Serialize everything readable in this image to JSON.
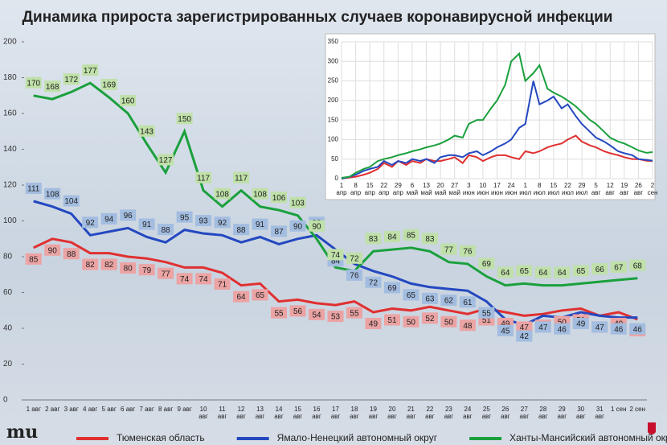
{
  "chart_data": [
    {
      "type": "line",
      "title": "Динамика прироста зарегистрированных случаев коронавирусной инфекции",
      "categories": [
        "1 авг",
        "2 авг",
        "3 авг",
        "4 авг",
        "5 авг",
        "6 авг",
        "7 авг",
        "8 авг",
        "9 авг",
        "10 авг",
        "11 авг",
        "12 авг",
        "13 авг",
        "14 авг",
        "15 авг",
        "16 авг",
        "17 авг",
        "18 авг",
        "19 авг",
        "20 авг",
        "21 авг",
        "22 авг",
        "23 авг",
        "24 авг",
        "25 авг",
        "26 авг",
        "27 авг",
        "28 авг",
        "29 авг",
        "30 авг",
        "31 авг",
        "1 сен",
        "2 сен"
      ],
      "series": [
        {
          "name": "Тюменская область",
          "color": "#e03030",
          "label_color": "#eba3a3",
          "values": [
            85,
            90,
            88,
            82,
            82,
            80,
            79,
            77,
            74,
            74,
            71,
            64,
            65,
            55,
            56,
            54,
            53,
            55,
            49,
            51,
            50,
            52,
            50,
            48,
            51,
            49,
            47,
            48,
            50,
            51,
            47,
            49,
            45
          ]
        },
        {
          "name": "Ямало-Ненецкий автономный округ",
          "color": "#2448c0",
          "label_color": "#a3bde0",
          "values": [
            111,
            108,
            104,
            92,
            94,
            96,
            91,
            88,
            95,
            93,
            92,
            88,
            91,
            87,
            90,
            92,
            84,
            76,
            72,
            69,
            65,
            63,
            62,
            61,
            55,
            45,
            42,
            47,
            46,
            49,
            47,
            46,
            46
          ]
        },
        {
          "name": "Ханты-Мансийский автономный округ — Югра",
          "color": "#1aa03c",
          "label_color": "#bfe0a8",
          "values": [
            170,
            168,
            172,
            177,
            169,
            160,
            143,
            127,
            150,
            117,
            108,
            117,
            108,
            106,
            103,
            90,
            74,
            72,
            83,
            84,
            85,
            83,
            77,
            76,
            69,
            64,
            65,
            64,
            64,
            65,
            66,
            67,
            68
          ]
        }
      ],
      "ylim": [
        0,
        200
      ],
      "yticks": [
        0,
        20,
        40,
        60,
        80,
        100,
        120,
        140,
        160,
        180,
        200
      ]
    },
    {
      "type": "line",
      "x": [
        0,
        4,
        7,
        11,
        14,
        18,
        21,
        25,
        28,
        32,
        35,
        39,
        42,
        46,
        49,
        53,
        56,
        60,
        63,
        67,
        70,
        74,
        77,
        81,
        84,
        88,
        91,
        95,
        98,
        102,
        105,
        109,
        112,
        116,
        119,
        123,
        126,
        130,
        133,
        137,
        140,
        144,
        147,
        151,
        154
      ],
      "series": [
        {
          "color": "#e03030",
          "values": [
            0,
            3,
            5,
            10,
            15,
            25,
            40,
            30,
            45,
            35,
            45,
            40,
            50,
            45,
            45,
            50,
            55,
            40,
            60,
            55,
            45,
            55,
            60,
            60,
            55,
            50,
            70,
            65,
            70,
            80,
            85,
            90,
            100,
            110,
            95,
            85,
            80,
            70,
            65,
            60,
            55,
            50,
            50,
            46,
            45
          ]
        },
        {
          "color": "#2448c0",
          "values": [
            0,
            5,
            10,
            20,
            25,
            30,
            45,
            35,
            45,
            40,
            50,
            45,
            50,
            40,
            55,
            60,
            60,
            55,
            65,
            70,
            60,
            70,
            80,
            90,
            100,
            130,
            140,
            250,
            190,
            200,
            210,
            180,
            190,
            160,
            140,
            120,
            105,
            95,
            85,
            70,
            65,
            60,
            50,
            48,
            46
          ]
        },
        {
          "color": "#1aa03c",
          "values": [
            2,
            5,
            15,
            25,
            30,
            45,
            50,
            55,
            60,
            65,
            70,
            75,
            80,
            85,
            90,
            100,
            110,
            105,
            140,
            150,
            150,
            180,
            200,
            240,
            300,
            320,
            250,
            270,
            290,
            230,
            220,
            210,
            200,
            185,
            170,
            150,
            140,
            120,
            105,
            95,
            90,
            80,
            72,
            66,
            68
          ]
        }
      ],
      "xlim": [
        0,
        154
      ],
      "xticks": [
        {
          "value": 0,
          "label": "1 апр"
        },
        {
          "value": 7,
          "label": "8 апр"
        },
        {
          "value": 14,
          "label": "15 апр"
        },
        {
          "value": 21,
          "label": "22 апр"
        },
        {
          "value": 28,
          "label": "29 апр"
        },
        {
          "value": 35,
          "label": "6 май"
        },
        {
          "value": 42,
          "label": "13 май"
        },
        {
          "value": 49,
          "label": "20 май"
        },
        {
          "value": 56,
          "label": "27 май"
        },
        {
          "value": 63,
          "label": "3 июн"
        },
        {
          "value": 70,
          "label": "10 июн"
        },
        {
          "value": 77,
          "label": "17 июн"
        },
        {
          "value": 84,
          "label": "24 июн"
        },
        {
          "value": 91,
          "label": "1 июл"
        },
        {
          "value": 98,
          "label": "8 июл"
        },
        {
          "value": 105,
          "label": "15 июл"
        },
        {
          "value": 112,
          "label": "22 июл"
        },
        {
          "value": 119,
          "label": "29 июл"
        },
        {
          "value": 126,
          "label": "5 авг"
        },
        {
          "value": 133,
          "label": "12 авг"
        },
        {
          "value": 140,
          "label": "19 авг"
        },
        {
          "value": 147,
          "label": "26 авг"
        },
        {
          "value": 154,
          "label": "2 сен"
        }
      ],
      "ylim": [
        0,
        350
      ],
      "yticks": [
        0,
        50,
        100,
        150,
        200,
        250,
        300,
        350
      ],
      "grid": true
    }
  ]
}
